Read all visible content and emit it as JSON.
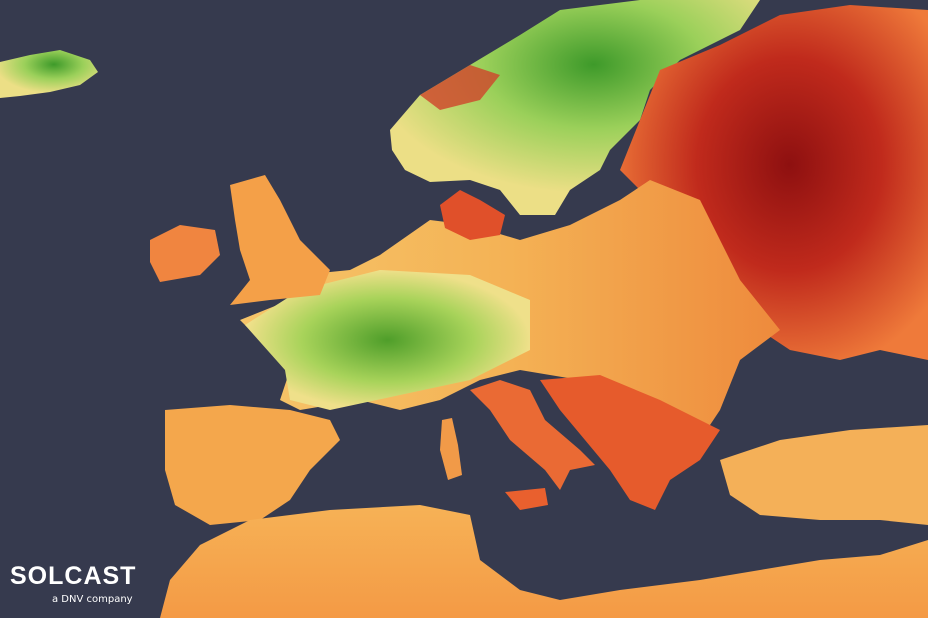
{
  "map": {
    "region": "Europe",
    "colors": {
      "sea": "#363a4e",
      "low": "#4f9e2a",
      "mid_low": "#a8d35a",
      "mid": "#f1e48a",
      "mid_high": "#f4a64a",
      "high": "#e9582a",
      "very_high": "#9e1414"
    }
  },
  "logo": {
    "brand": "SOLCAST",
    "tagline": "a DNV company"
  }
}
